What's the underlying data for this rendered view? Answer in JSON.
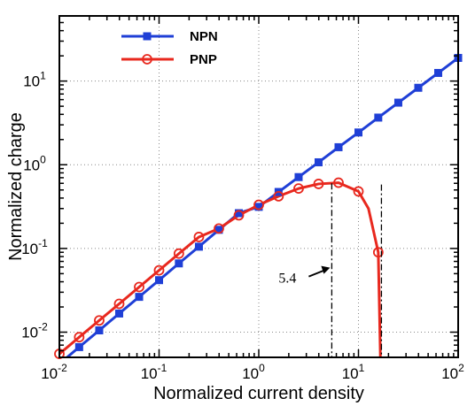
{
  "chart_data": {
    "type": "line",
    "xlabel": "Normalized current density",
    "ylabel": "Normalized charge",
    "xscale": "log",
    "yscale": "log",
    "xlim": [
      0.01,
      100
    ],
    "ylim": [
      0.005,
      60
    ],
    "grid": true,
    "legend_position": "top-left",
    "x_ticks": [
      {
        "base": "10",
        "exp": "-2"
      },
      {
        "base": "10",
        "exp": "-1"
      },
      {
        "base": "10",
        "exp": "0"
      },
      {
        "base": "10",
        "exp": "1"
      },
      {
        "base": "10",
        "exp": "2"
      }
    ],
    "y_ticks": [
      {
        "base": "10",
        "exp": "-2"
      },
      {
        "base": "10",
        "exp": "-1"
      },
      {
        "base": "10",
        "exp": "0"
      },
      {
        "base": "10",
        "exp": "1"
      }
    ],
    "series": [
      {
        "name": "NPN",
        "color": "#1f3fd6",
        "marker": "square",
        "x": [
          0.01,
          0.0158,
          0.0251,
          0.0398,
          0.0631,
          0.1,
          0.158,
          0.251,
          0.398,
          0.631,
          1.0,
          1.58,
          2.51,
          3.98,
          6.31,
          10,
          15.8,
          25.1,
          39.8,
          63.1,
          100
        ],
        "y": [
          0.00418,
          0.00663,
          0.0105,
          0.0167,
          0.0264,
          0.0418,
          0.0663,
          0.105,
          0.167,
          0.264,
          0.314,
          0.473,
          0.712,
          1.07,
          1.62,
          2.43,
          3.66,
          5.52,
          8.31,
          12.5,
          18.9
        ]
      },
      {
        "name": "PNP",
        "color": "#e8281e",
        "marker": "circle-open",
        "x": [
          0.01,
          0.0158,
          0.0251,
          0.0398,
          0.0631,
          0.1,
          0.158,
          0.251,
          0.398,
          0.631,
          1.0,
          1.58,
          2.51,
          3.98,
          6.31,
          10,
          12.6,
          15.8,
          16.6
        ],
        "y": [
          0.0055,
          0.00871,
          0.0138,
          0.0218,
          0.0346,
          0.0548,
          0.0868,
          0.137,
          0.173,
          0.249,
          0.332,
          0.42,
          0.52,
          0.59,
          0.61,
          0.48,
          0.3,
          0.09,
          0.005
        ],
        "marker_indices": [
          0,
          1,
          2,
          3,
          4,
          5,
          6,
          7,
          8,
          9,
          10,
          11,
          12,
          13,
          14,
          15,
          17
        ]
      }
    ],
    "annotations": [
      {
        "text": "5.4",
        "x": 5.4,
        "kind": "dash-dot vertical line with arrow"
      },
      {
        "text": "",
        "x": 17.0,
        "kind": "dash-dot vertical line"
      }
    ]
  }
}
